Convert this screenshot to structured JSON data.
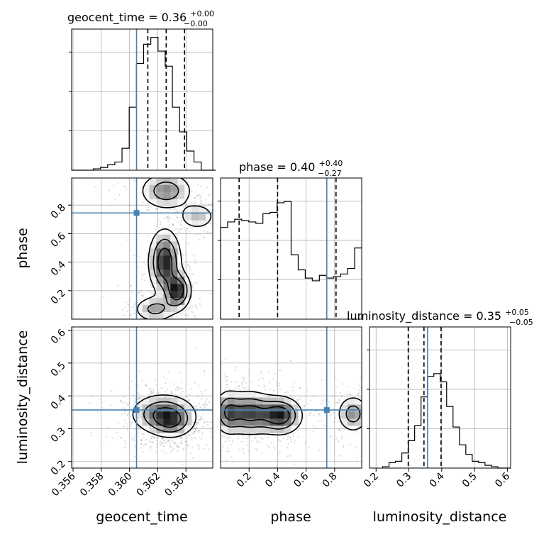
{
  "chart_data": {
    "type": "corner",
    "grid": true,
    "parameters": [
      "geocent_time",
      "phase",
      "luminosity_distance"
    ],
    "truth_color": "#4682b4",
    "truths": {
      "geocent_time": 0.3605,
      "phase": 0.745,
      "luminosity_distance": 0.357
    },
    "titles": [
      {
        "param": "geocent_time",
        "label": "geocent_time = 0.36",
        "plus": "+0.00",
        "minus": "−0.00"
      },
      {
        "param": "phase",
        "label": "phase = 0.40",
        "plus": "+0.40",
        "minus": "−0.27"
      },
      {
        "param": "luminosity_distance",
        "label": "luminosity_distance = 0.35",
        "plus": "+0.05",
        "minus": "−0.05"
      }
    ],
    "axes": {
      "geocent_time": {
        "range": [
          0.3559,
          0.3659
        ],
        "ticks": [
          0.356,
          0.358,
          0.36,
          0.362,
          0.364
        ],
        "tick_labels": [
          "0.356",
          "0.358",
          "0.360",
          "0.362",
          "0.364"
        ]
      },
      "phase": {
        "range": [
          0.0,
          0.99
        ],
        "ticks": [
          0.2,
          0.4,
          0.6,
          0.8
        ],
        "tick_labels": [
          "0.2",
          "0.4",
          "0.6",
          "0.8"
        ]
      },
      "luminosity_distance": {
        "range": [
          0.18,
          0.61
        ],
        "ticks": [
          0.2,
          0.3,
          0.4,
          0.5,
          0.6
        ],
        "tick_labels": [
          "0.2",
          "0.3",
          "0.4",
          "0.5",
          "0.6"
        ]
      }
    },
    "histograms": {
      "geocent_time": {
        "bins": [
          0.3559,
          0.3661
        ],
        "n": 20,
        "counts": [
          0,
          0,
          0,
          0.01,
          0.02,
          0.04,
          0.06,
          0.16,
          0.46,
          0.78,
          0.92,
          0.97,
          0.87,
          0.76,
          0.46,
          0.28,
          0.14,
          0.06,
          0,
          0
        ],
        "quantiles": [
          0.3613,
          0.3626,
          0.3639
        ]
      },
      "phase": {
        "bins": [
          0.0,
          0.99
        ],
        "n": 20,
        "counts": [
          0.67,
          0.71,
          0.73,
          0.72,
          0.71,
          0.7,
          0.77,
          0.78,
          0.85,
          0.86,
          0.47,
          0.36,
          0.3,
          0.28,
          0.32,
          0.3,
          0.31,
          0.33,
          0.37,
          0.52
        ],
        "quantiles": [
          0.13,
          0.4,
          0.81
        ]
      },
      "luminosity_distance": {
        "bins": [
          0.22,
          0.61
        ],
        "n": 20,
        "counts": [
          0.01,
          0.04,
          0.05,
          0.11,
          0.2,
          0.31,
          0.52,
          0.67,
          0.69,
          0.63,
          0.45,
          0.3,
          0.17,
          0.1,
          0.05,
          0.04,
          0.02,
          0.01,
          0,
          0
        ],
        "quantiles": [
          0.298,
          0.346,
          0.398
        ]
      }
    },
    "contours_2d": [
      {
        "x": "geocent_time",
        "y": "phase",
        "density_blobs": [
          {
            "cx": 0.3625,
            "cy": 0.4,
            "sx": 0.0006,
            "sy": 0.12,
            "w": 1.0
          },
          {
            "cx": 0.3634,
            "cy": 0.2,
            "sx": 0.0005,
            "sy": 0.07,
            "w": 1.0
          },
          {
            "cx": 0.3626,
            "cy": 0.9,
            "sx": 0.001,
            "sy": 0.07,
            "w": 0.6
          },
          {
            "cx": 0.3618,
            "cy": 0.07,
            "sx": 0.0008,
            "sy": 0.05,
            "w": 0.5
          },
          {
            "cx": 0.3648,
            "cy": 0.72,
            "sx": 0.0007,
            "sy": 0.05,
            "w": 0.4
          }
        ]
      },
      {
        "x": "geocent_time",
        "y": "luminosity_distance",
        "density_blobs": [
          {
            "cx": 0.3624,
            "cy": 0.345,
            "sx": 0.0012,
            "sy": 0.032,
            "w": 1.0
          },
          {
            "cx": 0.363,
            "cy": 0.318,
            "sx": 0.0008,
            "sy": 0.025,
            "w": 0.6
          }
        ]
      },
      {
        "x": "phase",
        "y": "luminosity_distance",
        "density_blobs": [
          {
            "cx": 0.2,
            "cy": 0.348,
            "sx": 0.1,
            "sy": 0.035,
            "w": 0.9
          },
          {
            "cx": 0.42,
            "cy": 0.34,
            "sx": 0.08,
            "sy": 0.03,
            "w": 1.0
          },
          {
            "cx": 0.05,
            "cy": 0.35,
            "sx": 0.05,
            "sy": 0.035,
            "w": 0.6
          },
          {
            "cx": 0.93,
            "cy": 0.345,
            "sx": 0.06,
            "sy": 0.03,
            "w": 0.6
          }
        ]
      }
    ]
  }
}
